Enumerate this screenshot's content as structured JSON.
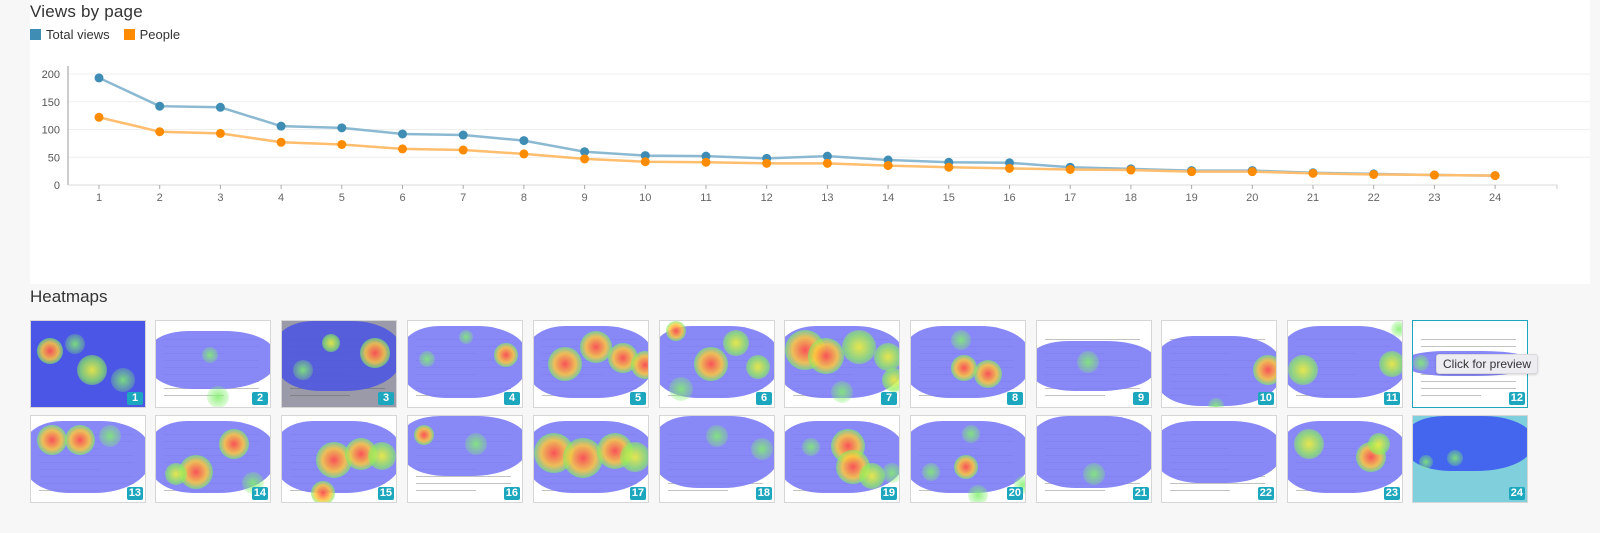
{
  "views_section": {
    "title": "Views by page",
    "legend": [
      {
        "label": "Total views",
        "color": "#3f8db5"
      },
      {
        "label": "People",
        "color": "#ff8c00"
      }
    ]
  },
  "heatmaps_section": {
    "title": "Heatmaps",
    "tooltip": "Click for preview",
    "selected_page": 12,
    "badge_color": "#1da7be",
    "pages": [
      {
        "n": "1"
      },
      {
        "n": "2"
      },
      {
        "n": "3"
      },
      {
        "n": "4"
      },
      {
        "n": "5"
      },
      {
        "n": "6"
      },
      {
        "n": "7"
      },
      {
        "n": "8"
      },
      {
        "n": "9"
      },
      {
        "n": "10"
      },
      {
        "n": "11"
      },
      {
        "n": "12"
      },
      {
        "n": "13"
      },
      {
        "n": "14"
      },
      {
        "n": "15"
      },
      {
        "n": "16"
      },
      {
        "n": "17"
      },
      {
        "n": "18"
      },
      {
        "n": "19"
      },
      {
        "n": "20"
      },
      {
        "n": "21"
      },
      {
        "n": "22"
      },
      {
        "n": "23"
      },
      {
        "n": "24"
      }
    ]
  },
  "chart_data": {
    "type": "line",
    "title": "Views by page",
    "xlabel": "",
    "ylabel": "",
    "x": [
      1,
      2,
      3,
      4,
      5,
      6,
      7,
      8,
      9,
      10,
      11,
      12,
      13,
      14,
      15,
      16,
      17,
      18,
      19,
      20,
      21,
      22,
      23,
      24
    ],
    "yticks": [
      0,
      50,
      100,
      150,
      200
    ],
    "ylim": [
      0,
      200
    ],
    "grid": true,
    "legend_position": "top-left",
    "series": [
      {
        "name": "Total views",
        "color": "#3f8db5",
        "values": [
          193,
          142,
          140,
          106,
          103,
          92,
          90,
          80,
          60,
          53,
          52,
          48,
          52,
          45,
          41,
          40,
          32,
          29,
          26,
          26,
          22,
          20,
          18,
          17
        ]
      },
      {
        "name": "People",
        "color": "#ff8c00",
        "values": [
          122,
          96,
          93,
          77,
          73,
          65,
          63,
          56,
          47,
          42,
          41,
          39,
          39,
          35,
          32,
          30,
          28,
          27,
          24,
          24,
          21,
          19,
          18,
          17
        ]
      }
    ]
  }
}
